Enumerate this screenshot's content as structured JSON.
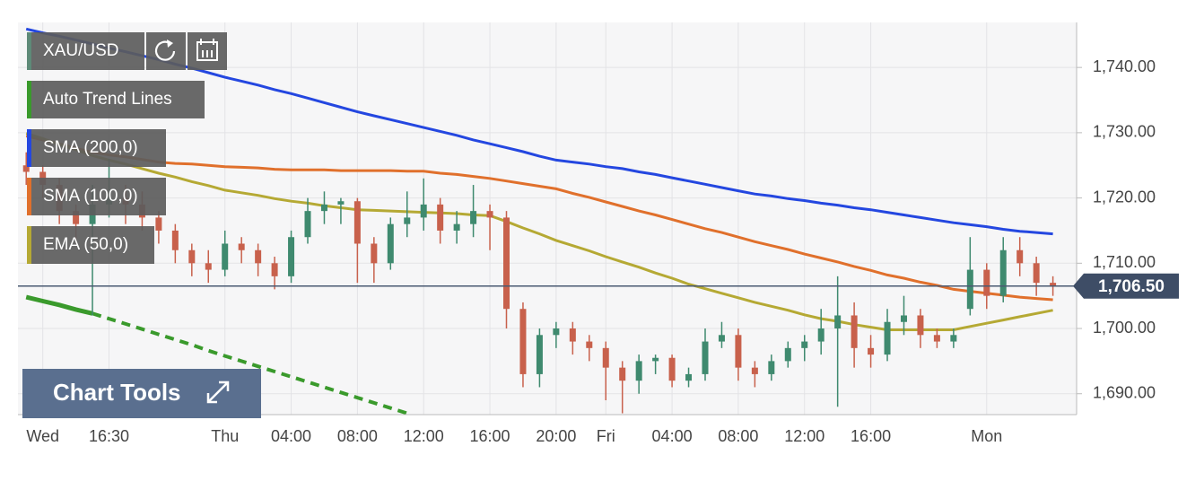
{
  "chart_data": {
    "type": "candlestick",
    "symbol": "XAU/USD",
    "categories": [
      null,
      "Wed",
      null,
      null,
      null,
      "16:30",
      null,
      null,
      null,
      null,
      null,
      null,
      "Thu",
      null,
      null,
      null,
      "04:00",
      null,
      null,
      null,
      "08:00",
      null,
      null,
      null,
      "12:00",
      null,
      null,
      null,
      "16:00",
      null,
      null,
      null,
      "20:00",
      null,
      null,
      "Fri",
      null,
      null,
      null,
      "04:00",
      null,
      null,
      null,
      "08:00",
      null,
      null,
      null,
      "12:00",
      null,
      null,
      null,
      "16:00",
      null,
      null,
      null,
      null,
      null,
      null,
      "Mon",
      null,
      null,
      null,
      null
    ],
    "open": [
      1725,
      1724,
      1722,
      1718,
      1716,
      1719,
      1720,
      1719,
      1717,
      1715,
      1712,
      1710,
      1709,
      1713,
      1712,
      1710,
      1708,
      1714,
      1718,
      1719,
      1719.5,
      1713,
      1710,
      1716,
      1717,
      1719,
      1715,
      1716,
      1718,
      1717,
      1703,
      1693,
      1699,
      1700,
      1698,
      1697,
      1694,
      1692,
      1695,
      1695.5,
      1692,
      1693,
      1698,
      1699,
      1694,
      1693,
      1695,
      1697,
      1698,
      1700,
      1702,
      1697,
      1696,
      1701,
      1702,
      1699,
      1698,
      1703,
      1709,
      1705,
      1712,
      1710,
      1707
    ],
    "high": [
      1727,
      1725,
      1723,
      1719,
      1722,
      1726,
      1722,
      1721,
      1718,
      1716,
      1713,
      1712,
      1715,
      1714,
      1713,
      1711,
      1715,
      1720,
      1721,
      1720,
      1720,
      1714,
      1717,
      1721,
      1723,
      1720,
      1718,
      1722,
      1719,
      1718,
      1704,
      1700,
      1701,
      1701,
      1699,
      1698,
      1695,
      1696,
      1696,
      1696,
      1694,
      1700,
      1701,
      1700,
      1695,
      1696,
      1698,
      1699,
      1703,
      1708,
      1704,
      1699,
      1703,
      1705,
      1703,
      1700,
      1700,
      1714,
      1710,
      1714,
      1714,
      1711,
      1708
    ],
    "low": [
      1722,
      1720,
      1716,
      1713,
      1702,
      1717,
      1716,
      1715,
      1713,
      1710,
      1708,
      1707,
      1708,
      1710,
      1708,
      1706,
      1707,
      1713,
      1716,
      1716,
      1707,
      1707,
      1709,
      1714,
      1715,
      1713,
      1713,
      1714,
      1712,
      1700,
      1691,
      1691,
      1697,
      1696,
      1695,
      1689,
      1687,
      1690,
      1693,
      1691,
      1691,
      1692,
      1697,
      1692,
      1691,
      1692,
      1694,
      1695,
      1696,
      1688,
      1694,
      1694,
      1695,
      1699,
      1697,
      1697,
      1697,
      1702,
      1703,
      1704,
      1708,
      1705,
      1705
    ],
    "close": [
      1724,
      1722,
      1718,
      1716,
      1719,
      1720,
      1719,
      1717,
      1715,
      1712,
      1710,
      1709,
      1713,
      1712,
      1710,
      1708,
      1714,
      1718,
      1719,
      1719.5,
      1713,
      1710,
      1716,
      1717,
      1719,
      1715,
      1716,
      1718,
      1717,
      1703,
      1693,
      1699,
      1700,
      1698,
      1697,
      1694,
      1692,
      1695,
      1695.5,
      1692,
      1693,
      1698,
      1699,
      1694,
      1693,
      1695,
      1697,
      1698,
      1700,
      1702,
      1697,
      1696,
      1701,
      1702,
      1699,
      1698,
      1699,
      1709,
      1705,
      1712,
      1710,
      1707,
      1706.5
    ],
    "up_color": "#3f8a6f",
    "down_color": "#c8614c",
    "overlays": [
      {
        "name": "SMA (200,0)",
        "color": "#2447e0",
        "values": [
          1745.9,
          1745.3,
          1744.8,
          1744.2,
          1743.6,
          1743.0,
          1742.4,
          1741.8,
          1741.2,
          1740.5,
          1739.9,
          1739.2,
          1738.5,
          1737.9,
          1737.3,
          1736.6,
          1736.0,
          1735.3,
          1734.6,
          1733.9,
          1733.2,
          1732.6,
          1732.0,
          1731.4,
          1730.8,
          1730.2,
          1729.6,
          1728.9,
          1728.3,
          1727.7,
          1727.1,
          1726.4,
          1725.8,
          1725.5,
          1725.2,
          1724.8,
          1724.5,
          1724.0,
          1723.6,
          1723.1,
          1722.6,
          1722.1,
          1721.6,
          1721.1,
          1720.6,
          1720.3,
          1719.9,
          1719.6,
          1719.2,
          1718.9,
          1718.5,
          1718.2,
          1717.8,
          1717.4,
          1717.0,
          1716.6,
          1716.2,
          1715.9,
          1715.6,
          1715.2,
          1714.9,
          1714.7,
          1714.5
        ]
      },
      {
        "name": "SMA (100,0)",
        "color": "#e0702c",
        "values": [
          1729.5,
          1728.9,
          1728.3,
          1727.6,
          1727.0,
          1726.6,
          1726.3,
          1725.9,
          1725.5,
          1725.3,
          1725.2,
          1725.0,
          1724.8,
          1724.7,
          1724.6,
          1724.4,
          1724.3,
          1724.3,
          1724.3,
          1724.2,
          1724.2,
          1724.2,
          1724.2,
          1724.1,
          1724.1,
          1723.8,
          1723.6,
          1723.3,
          1723.0,
          1722.6,
          1722.2,
          1721.8,
          1721.4,
          1720.7,
          1720.1,
          1719.4,
          1718.7,
          1718.0,
          1717.4,
          1716.7,
          1716.0,
          1715.3,
          1714.7,
          1714.0,
          1713.3,
          1712.7,
          1712.1,
          1711.4,
          1710.8,
          1710.2,
          1709.5,
          1708.9,
          1708.2,
          1707.7,
          1707.1,
          1706.6,
          1706.0,
          1705.7,
          1705.4,
          1705.1,
          1704.8,
          1704.6,
          1704.4
        ]
      },
      {
        "name": "EMA (50,0)",
        "color": "#b5a934",
        "values": [
          1729.9,
          1729.1,
          1728.2,
          1727.4,
          1726.5,
          1725.8,
          1725.2,
          1724.5,
          1723.8,
          1723.2,
          1722.5,
          1721.9,
          1721.2,
          1720.8,
          1720.4,
          1719.9,
          1719.5,
          1719.2,
          1718.8,
          1718.5,
          1718.2,
          1718.1,
          1718.0,
          1717.9,
          1717.8,
          1717.7,
          1717.6,
          1717.4,
          1717.3,
          1716.4,
          1715.4,
          1714.5,
          1713.5,
          1712.7,
          1711.9,
          1711.0,
          1710.2,
          1709.4,
          1708.5,
          1707.7,
          1706.8,
          1706.1,
          1705.4,
          1704.7,
          1704.0,
          1703.4,
          1702.8,
          1702.1,
          1701.5,
          1701.1,
          1700.6,
          1700.2,
          1699.8,
          1699.8,
          1699.8,
          1699.8,
          1699.8,
          1700.3,
          1700.8,
          1701.3,
          1701.8,
          1702.3,
          1702.8
        ]
      }
    ],
    "trend_line": {
      "name": "Auto Trend Lines",
      "color": "#3a9a2c",
      "values": [
        1704.8,
        1704.2,
        1703.6,
        1702.9,
        1702.3,
        1701.5,
        1700.7,
        1699.9,
        1699.1,
        1698.3,
        1697.5,
        1696.6,
        1695.8,
        1695.0,
        1694.2,
        1693.4,
        1692.6,
        1691.8,
        1691.0,
        1690.2,
        1689.4,
        1688.6,
        1687.8,
        1687.0,
        null,
        null,
        null,
        null,
        null,
        null,
        null,
        null,
        null,
        null,
        null,
        null,
        null,
        null,
        null,
        null,
        null,
        null,
        null,
        null,
        null,
        null,
        null,
        null,
        null,
        null,
        null,
        null,
        null,
        null,
        null,
        null,
        null,
        null,
        null,
        null,
        null,
        null,
        null
      ]
    },
    "last_price": {
      "value": 1706.5,
      "label": "1,706.50"
    },
    "ylim": [
      1686.8,
      1746.9
    ],
    "yticks": [
      {
        "value": 1690,
        "label": "1,690.00"
      },
      {
        "value": 1700,
        "label": "1,700.00"
      },
      {
        "value": 1710,
        "label": "1,710.00"
      },
      {
        "value": 1720,
        "label": "1,720.00"
      },
      {
        "value": 1730,
        "label": "1,730.00"
      },
      {
        "value": 1740,
        "label": "1,740.00"
      }
    ],
    "grid": true,
    "button": "Chart Tools"
  }
}
